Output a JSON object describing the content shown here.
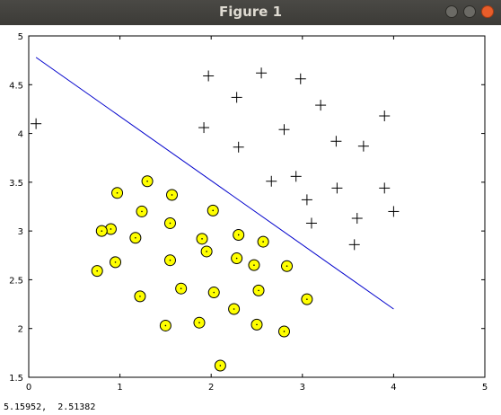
{
  "window": {
    "title": "Figure 1",
    "buttons": {
      "minimize": "minimize-icon",
      "maximize": "maximize-icon",
      "close": "close-icon"
    }
  },
  "status": {
    "coordinates": "5.15952,  2.51382"
  },
  "colors": {
    "marker_fill": "#ffff00",
    "boundary_line": "#0000cc",
    "titlebar": "#3c3b37"
  },
  "chart_data": {
    "type": "scatter",
    "xlim": [
      0,
      5
    ],
    "ylim": [
      1.5,
      5
    ],
    "xticks": [
      "0",
      "1",
      "2",
      "3",
      "4",
      "5"
    ],
    "yticks": [
      "1.5",
      "2",
      "2.5",
      "3",
      "3.5",
      "4",
      "4.5",
      "5"
    ],
    "grid": false,
    "series": [
      {
        "marker": "plus",
        "points": [
          [
            0.08,
            4.1
          ],
          [
            1.97,
            4.59
          ],
          [
            2.55,
            4.62
          ],
          [
            2.98,
            4.56
          ],
          [
            2.28,
            4.37
          ],
          [
            3.2,
            4.29
          ],
          [
            1.92,
            4.06
          ],
          [
            2.8,
            4.04
          ],
          [
            3.9,
            4.18
          ],
          [
            2.3,
            3.86
          ],
          [
            3.37,
            3.92
          ],
          [
            3.67,
            3.87
          ],
          [
            2.66,
            3.51
          ],
          [
            2.93,
            3.56
          ],
          [
            3.05,
            3.32
          ],
          [
            3.38,
            3.44
          ],
          [
            3.9,
            3.44
          ],
          [
            3.6,
            3.13
          ],
          [
            4.0,
            3.2
          ],
          [
            3.1,
            3.08
          ],
          [
            3.57,
            2.86
          ]
        ]
      },
      {
        "marker": "circle",
        "points": [
          [
            0.97,
            3.39
          ],
          [
            1.3,
            3.51
          ],
          [
            1.57,
            3.37
          ],
          [
            1.24,
            3.2
          ],
          [
            2.02,
            3.21
          ],
          [
            0.9,
            3.02
          ],
          [
            0.8,
            3.0
          ],
          [
            1.17,
            2.93
          ],
          [
            1.55,
            3.08
          ],
          [
            1.9,
            2.92
          ],
          [
            2.3,
            2.96
          ],
          [
            2.57,
            2.89
          ],
          [
            1.95,
            2.79
          ],
          [
            0.75,
            2.59
          ],
          [
            0.95,
            2.68
          ],
          [
            1.55,
            2.7
          ],
          [
            2.28,
            2.72
          ],
          [
            2.47,
            2.65
          ],
          [
            2.83,
            2.64
          ],
          [
            1.22,
            2.33
          ],
          [
            1.67,
            2.41
          ],
          [
            2.03,
            2.37
          ],
          [
            2.52,
            2.39
          ],
          [
            3.05,
            2.3
          ],
          [
            2.25,
            2.2
          ],
          [
            1.87,
            2.06
          ],
          [
            1.5,
            2.03
          ],
          [
            2.5,
            2.04
          ],
          [
            2.8,
            1.97
          ],
          [
            2.1,
            1.62
          ]
        ]
      }
    ],
    "line": {
      "x": [
        0.08,
        4.0
      ],
      "y": [
        4.78,
        2.2
      ]
    }
  }
}
